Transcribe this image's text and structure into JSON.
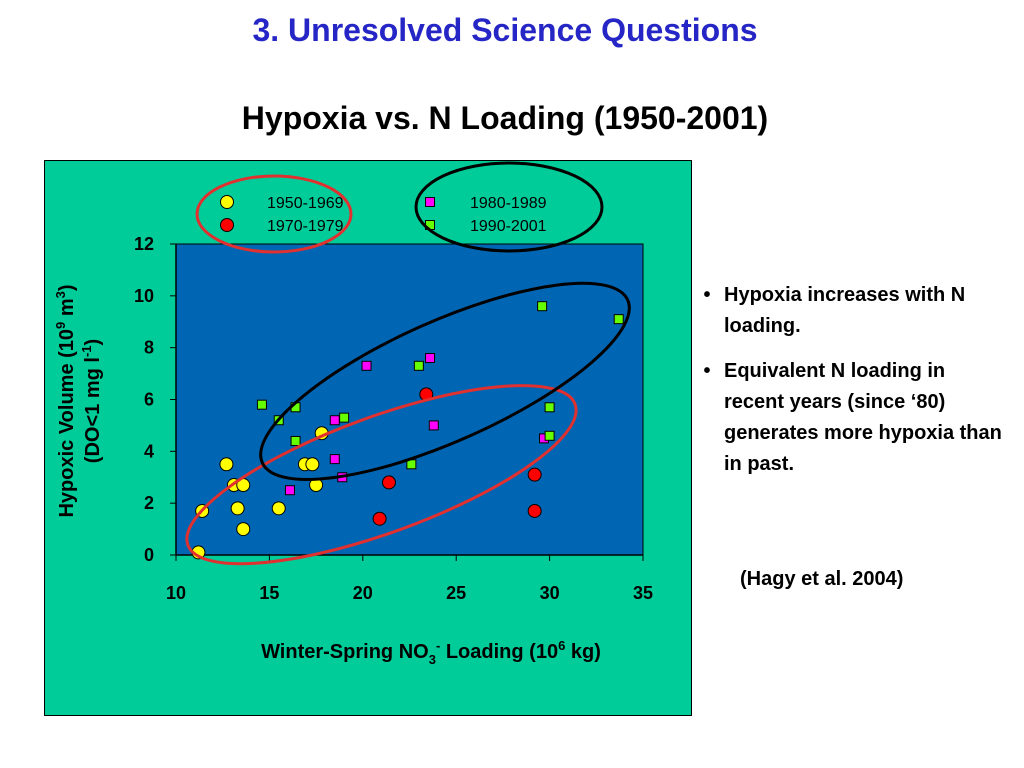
{
  "slide_title": "3. Unresolved Science Questions",
  "notes": [
    "Hypoxia increases with N loading.",
    "Equivalent N loading in recent years (since ‘80) generates more hypoxia than in past."
  ],
  "citation": "(Hagy et al. 2004)",
  "chart_data": {
    "type": "scatter",
    "title": "Hypoxia vs. N Loading (1950-2001)",
    "xlabel": "Winter-Spring NO3- Loading (106 kg)",
    "ylabel": "Hypoxic Volume (109 m3) (DO<1 mg l-1)",
    "xlim": [
      10,
      35
    ],
    "ylim": [
      0,
      12
    ],
    "x_ticks": [
      "10",
      "15",
      "20",
      "25",
      "30",
      "35"
    ],
    "y_ticks": [
      "0",
      "2",
      "4",
      "6",
      "8",
      "10",
      "12"
    ],
    "grid": false,
    "legend_position": "top",
    "colors": {
      "plot_bg": "#0066b3",
      "chart_bg": "#00cc99",
      "title": "#2626c6",
      "ellipse_red": "#e03030",
      "ellipse_black": "#000000"
    },
    "series": [
      {
        "name": "1950-1969",
        "marker": "circle",
        "color": "#ffff00",
        "points": [
          [
            11.2,
            0.1
          ],
          [
            11.4,
            1.7
          ],
          [
            12.7,
            3.5
          ],
          [
            13.1,
            2.7
          ],
          [
            13.3,
            1.8
          ],
          [
            13.6,
            2.7
          ],
          [
            13.6,
            1.0
          ],
          [
            15.5,
            1.8
          ],
          [
            16.9,
            3.5
          ],
          [
            17.3,
            3.5
          ],
          [
            17.5,
            2.7
          ],
          [
            17.8,
            4.7
          ]
        ]
      },
      {
        "name": "1970-1979",
        "marker": "circle",
        "color": "#ff0000",
        "points": [
          [
            20.9,
            1.4
          ],
          [
            21.4,
            2.8
          ],
          [
            23.4,
            6.2
          ],
          [
            29.2,
            3.1
          ],
          [
            29.2,
            1.7
          ]
        ]
      },
      {
        "name": "1980-1989",
        "marker": "square",
        "color": "#ff00ff",
        "points": [
          [
            16.1,
            2.5
          ],
          [
            18.5,
            5.2
          ],
          [
            18.5,
            3.7
          ],
          [
            18.9,
            3.0
          ],
          [
            20.2,
            7.3
          ],
          [
            23.6,
            7.6
          ],
          [
            23.8,
            5.0
          ],
          [
            29.7,
            4.5
          ]
        ]
      },
      {
        "name": "1990-2001",
        "marker": "square",
        "color": "#66ff00",
        "points": [
          [
            14.6,
            5.8
          ],
          [
            15.5,
            5.2
          ],
          [
            16.4,
            5.7
          ],
          [
            16.4,
            4.4
          ],
          [
            19.0,
            5.3
          ],
          [
            22.6,
            3.5
          ],
          [
            23.0,
            7.3
          ],
          [
            29.6,
            9.6
          ],
          [
            30.0,
            5.7
          ],
          [
            30.0,
            4.6
          ],
          [
            33.7,
            9.1
          ]
        ]
      }
    ]
  }
}
